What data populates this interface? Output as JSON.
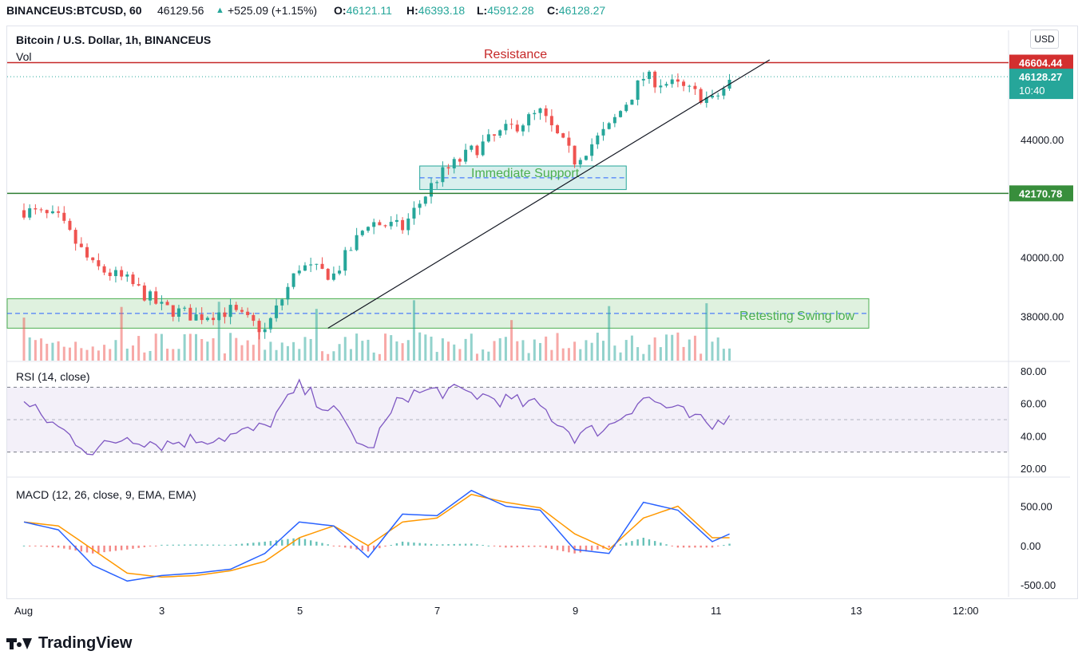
{
  "header": {
    "symbol": "BINANCEUS:BTCUSD, 60",
    "last": "46129.56",
    "change": "+525.09 (+1.15%)",
    "o_label": "O:",
    "o": "46121.11",
    "h_label": "H:",
    "h": "46393.18",
    "l_label": "L:",
    "l": "45912.28",
    "c_label": "C:",
    "c": "46128.27",
    "change_icon": "triangle-up-icon"
  },
  "legend": {
    "title": "Bitcoin / U.S. Dollar, 1h, BINANCEUS",
    "vol": "Vol",
    "rsi": "RSI (14, close)",
    "macd": "MACD (12, 26, close, 9, EMA, EMA)"
  },
  "currency_button": "USD",
  "brand": "TradingView",
  "colors": {
    "up": "#26a69a",
    "down": "#ef5350",
    "resistance": "#c62828",
    "support": "#2e7d32",
    "last_price": "#26a69a",
    "rsi_line": "#7e57c2",
    "macd_line": "#2962ff",
    "signal_line": "#ff9800"
  },
  "chart_data": [
    {
      "type": "line",
      "name": "price",
      "x_tick_labels": [
        "Aug",
        "3",
        "5",
        "7",
        "9",
        "11",
        "13",
        "12:00"
      ],
      "y_ticks": [
        "44000.00",
        "40000.00",
        "38000.00"
      ],
      "y_range": [
        36500,
        47700
      ],
      "x": [
        "Aug 1 00:00",
        "Aug 1 12:00",
        "Aug 2 00:00",
        "Aug 2 12:00",
        "Aug 3 00:00",
        "Aug 3 12:00",
        "Aug 4 00:00",
        "Aug 4 12:00",
        "Aug 5 00:00",
        "Aug 5 12:00",
        "Aug 6 00:00",
        "Aug 6 12:00",
        "Aug 7 00:00",
        "Aug 7 12:00",
        "Aug 8 00:00",
        "Aug 8 12:00",
        "Aug 9 00:00",
        "Aug 9 12:00",
        "Aug 10 00:00",
        "Aug 10 12:00",
        "Aug 11 00:00",
        "Aug 11 08:00"
      ],
      "close": [
        41600,
        41300,
        39700,
        39200,
        38300,
        38000,
        38200,
        37500,
        39700,
        39400,
        41200,
        41000,
        42700,
        43600,
        44300,
        44900,
        43300,
        44400,
        46100,
        45800,
        45300,
        46128
      ],
      "annotations": {
        "resistance": {
          "label": "Resistance",
          "price": "46604.44"
        },
        "support_line": {
          "price": "42170.78"
        },
        "immediate_support": {
          "label": "Immediate Support",
          "from_price": 42300,
          "to_price": 43100,
          "from_x": "Aug 6 18:00",
          "to_x": "Aug 9 18:00"
        },
        "swing_low": {
          "label": "Retesting Swing low",
          "from_price": 37600,
          "to_price": 38600
        },
        "trendline": {
          "from": [
            "Aug 5 10:00",
            37600
          ],
          "to": [
            "Aug 11 20:00",
            46700
          ]
        }
      },
      "last_price": {
        "value": "46128.27",
        "countdown": "10:40"
      }
    },
    {
      "type": "line",
      "name": "RSI (14, close)",
      "y_ticks": [
        "80.00",
        "60.00",
        "40.00",
        "20.00"
      ],
      "levels": [
        70,
        50,
        30
      ],
      "x": [
        "Aug 1 00:00",
        "Aug 1 12:00",
        "Aug 2 00:00",
        "Aug 2 12:00",
        "Aug 3 00:00",
        "Aug 3 12:00",
        "Aug 4 00:00",
        "Aug 4 12:00",
        "Aug 5 00:00",
        "Aug 5 12:00",
        "Aug 6 00:00",
        "Aug 6 12:00",
        "Aug 7 00:00",
        "Aug 7 12:00",
        "Aug 8 00:00",
        "Aug 8 12:00",
        "Aug 9 00:00",
        "Aug 9 12:00",
        "Aug 10 00:00",
        "Aug 10 12:00",
        "Aug 11 00:00",
        "Aug 11 08:00"
      ],
      "values": [
        60,
        45,
        30,
        40,
        35,
        38,
        40,
        45,
        70,
        55,
        30,
        65,
        68,
        66,
        62,
        58,
        40,
        46,
        64,
        55,
        45,
        58
      ]
    },
    {
      "type": "bar",
      "name": "MACD (12, 26, close, 9, EMA, EMA)",
      "y_ticks": [
        "500.00",
        "0.00",
        "-500.00"
      ],
      "x": [
        "Aug 1 00:00",
        "Aug 1 12:00",
        "Aug 2 00:00",
        "Aug 2 12:00",
        "Aug 3 00:00",
        "Aug 3 12:00",
        "Aug 4 00:00",
        "Aug 4 12:00",
        "Aug 5 00:00",
        "Aug 5 12:00",
        "Aug 6 00:00",
        "Aug 6 12:00",
        "Aug 7 00:00",
        "Aug 7 12:00",
        "Aug 8 00:00",
        "Aug 8 12:00",
        "Aug 9 00:00",
        "Aug 9 12:00",
        "Aug 10 00:00",
        "Aug 10 12:00",
        "Aug 11 00:00",
        "Aug 11 08:00"
      ],
      "macd": [
        300,
        200,
        -250,
        -450,
        -380,
        -350,
        -300,
        -100,
        300,
        250,
        -150,
        400,
        380,
        700,
        500,
        450,
        -50,
        -100,
        550,
        450,
        50,
        180
      ],
      "signal": [
        300,
        250,
        -50,
        -350,
        -400,
        -380,
        -320,
        -200,
        100,
        250,
        0,
        300,
        350,
        650,
        550,
        480,
        150,
        -50,
        350,
        500,
        100,
        100
      ]
    }
  ]
}
